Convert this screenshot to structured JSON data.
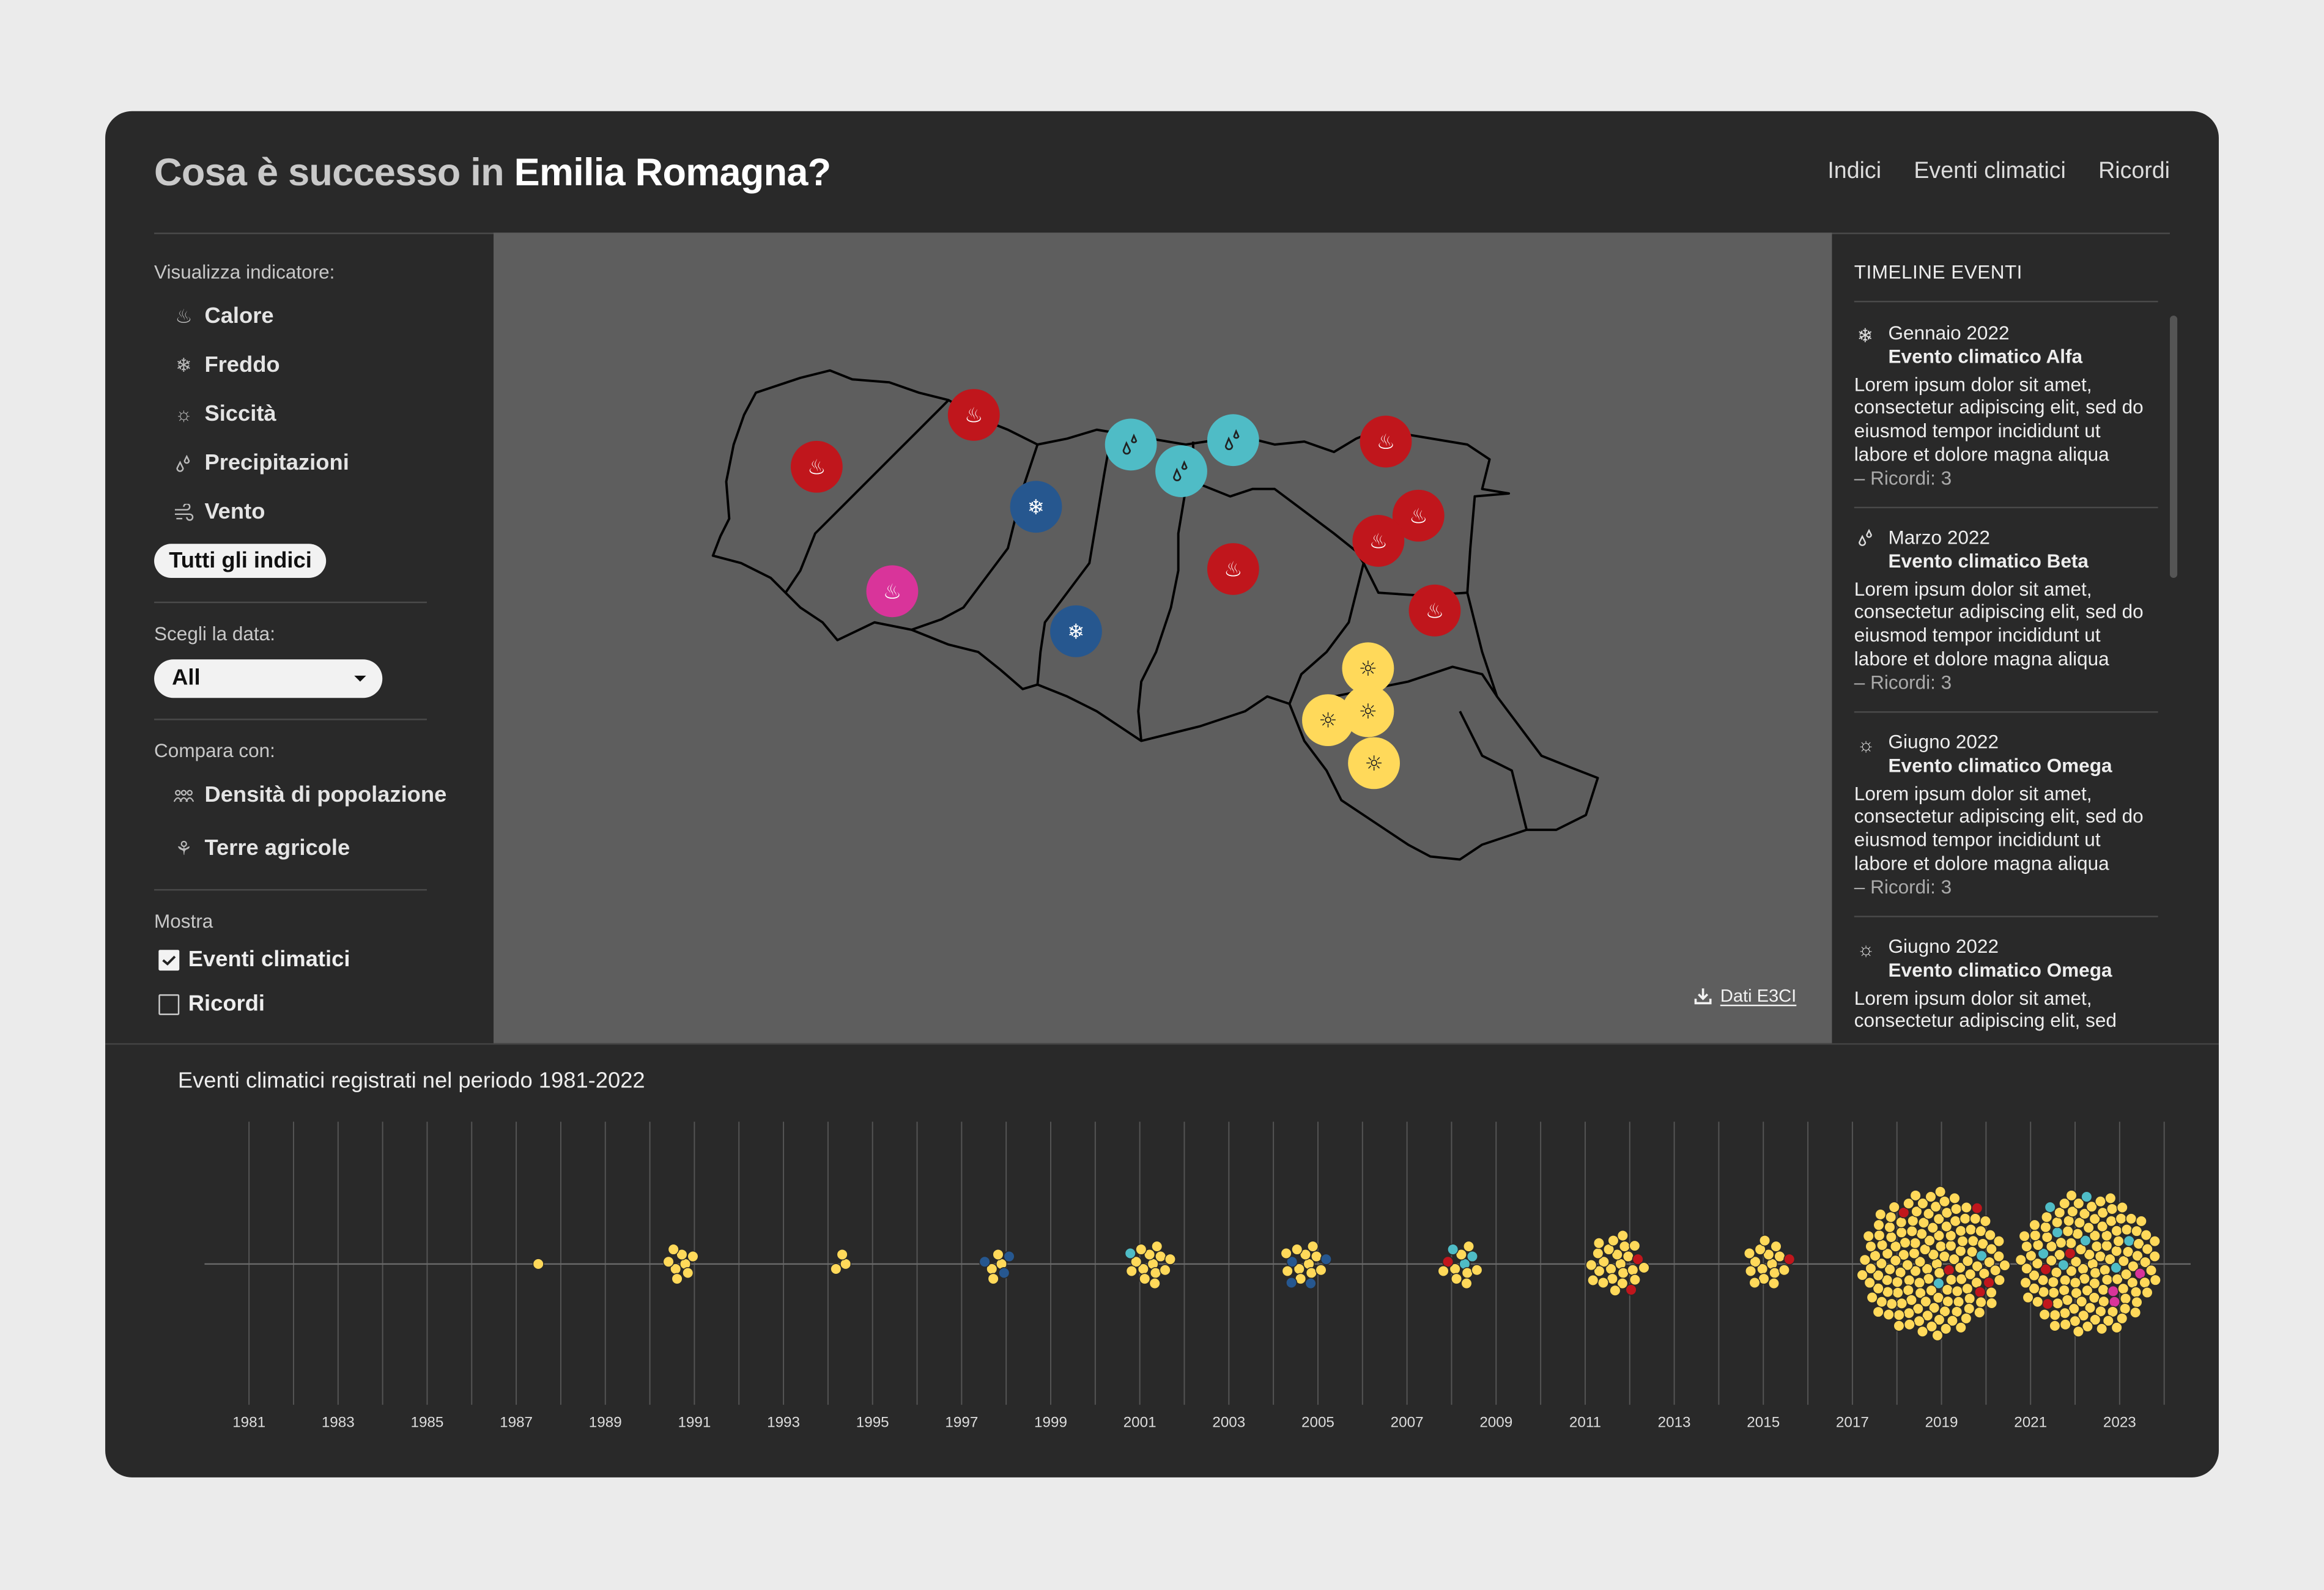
{
  "header": {
    "title_prefix": "Cosa è successo in ",
    "title_region": "Emilia Romagna?",
    "nav": [
      "Indici",
      "Eventi climatici",
      "Ricordi"
    ]
  },
  "sidebar": {
    "indicator_label": "Visualizza indicatore:",
    "indicators": [
      {
        "label": "Calore",
        "icon": "heat-icon"
      },
      {
        "label": "Freddo",
        "icon": "snowflake-icon"
      },
      {
        "label": "Siccità",
        "icon": "sun-icon"
      },
      {
        "label": "Precipitazioni",
        "icon": "droplets-icon"
      },
      {
        "label": "Vento",
        "icon": "wind-icon"
      }
    ],
    "all_button": "Tutti gli indici",
    "date_label": "Scegli la data:",
    "date_value": "All",
    "compare_label": "Compara con:",
    "compare": [
      {
        "label": "Densità di popolazione",
        "icon": "people-icon"
      },
      {
        "label": "Terre agricole",
        "icon": "wheat-icon"
      }
    ],
    "show_label": "Mostra",
    "show": [
      {
        "label": "Eventi climatici",
        "checked": true
      },
      {
        "label": "Ricordi",
        "checked": false
      }
    ]
  },
  "map": {
    "download_label": "Dati E3CI",
    "markers": [
      "calore",
      "calore",
      "calore",
      "calore",
      "calore",
      "calore",
      "calore",
      "calore-intenso",
      "freddo",
      "freddo",
      "precipitazioni",
      "precipitazioni",
      "precipitazioni",
      "siccita",
      "siccita",
      "siccita",
      "siccita"
    ]
  },
  "colors": {
    "calore": "#c0161c",
    "calore-intenso": "#d9349a",
    "freddo": "#26578f",
    "precipitazioni": "#4fbcc6",
    "siccita": "#ffd95a",
    "card_bg": "#292929",
    "map_bg": "#5e5e5e",
    "page_bg": "#ebebeb"
  },
  "timeline_panel": {
    "title": "TIMELINE EVENTI",
    "events": [
      {
        "icon": "snowflake-icon",
        "date": "Gennaio 2022",
        "title": "Evento climatico Alfa",
        "body": "Lorem ipsum dolor sit amet, consectetur adipiscing elit, sed do eiusmod tempor incididunt ut labore et dolore magna aliqua",
        "ricordi": "– Ricordi: 3"
      },
      {
        "icon": "droplets-icon",
        "date": "Marzo 2022",
        "title": "Evento climatico Beta",
        "body": "Lorem ipsum dolor sit amet, consectetur adipiscing elit, sed do eiusmod tempor incididunt ut labore et dolore magna aliqua",
        "ricordi": "– Ricordi: 3"
      },
      {
        "icon": "sun-icon",
        "date": "Giugno 2022",
        "title": "Evento climatico Omega",
        "body": "Lorem ipsum dolor sit amet, consectetur adipiscing elit, sed do eiusmod tempor incididunt ut labore et dolore magna aliqua",
        "ricordi": "– Ricordi: 3"
      },
      {
        "icon": "sun-icon",
        "date": "Giugno 2022",
        "title": "Evento climatico Omega",
        "body": "Lorem ipsum dolor sit amet, consectetur adipiscing elit, sed",
        "ricordi": ""
      }
    ]
  },
  "chart_data": {
    "type": "scatter",
    "title": "Eventi climatici registrati nel periodo 1981-2022",
    "x_ticks": [
      1981,
      1983,
      1985,
      1987,
      1989,
      1991,
      1993,
      1995,
      1997,
      1999,
      2001,
      2003,
      2005,
      2007,
      2009,
      2011,
      2013,
      2015,
      2017,
      2019,
      2021,
      2023
    ],
    "xlim": [
      1981,
      2024
    ],
    "grid": "vertical lines every year",
    "clusters": [
      {
        "x": 1987.4,
        "counts": {
          "siccita": 1
        }
      },
      {
        "x": 1990.7,
        "counts": {
          "siccita": 8
        }
      },
      {
        "x": 1994.3,
        "counts": {
          "siccita": 3
        }
      },
      {
        "x": 1997.8,
        "counts": {
          "siccita": 4,
          "freddo": 3
        }
      },
      {
        "x": 2001.2,
        "counts": {
          "siccita": 13,
          "precipitazioni": 1
        }
      },
      {
        "x": 2004.7,
        "counts": {
          "siccita": 11,
          "freddo": 4
        }
      },
      {
        "x": 2008.2,
        "counts": {
          "siccita": 8,
          "precipitazioni": 3,
          "calore": 1
        }
      },
      {
        "x": 2011.7,
        "counts": {
          "siccita": 23,
          "calore": 2
        }
      },
      {
        "x": 2015.1,
        "counts": {
          "siccita": 15,
          "calore": 1
        }
      },
      {
        "x": 2018.8,
        "counts": {
          "siccita": 140,
          "precipitazioni": 2,
          "calore": 5
        }
      },
      {
        "x": 2022.3,
        "counts": {
          "siccita": 125,
          "precipitazioni": 8,
          "calore": 3,
          "calore-intenso": 3
        }
      }
    ]
  }
}
